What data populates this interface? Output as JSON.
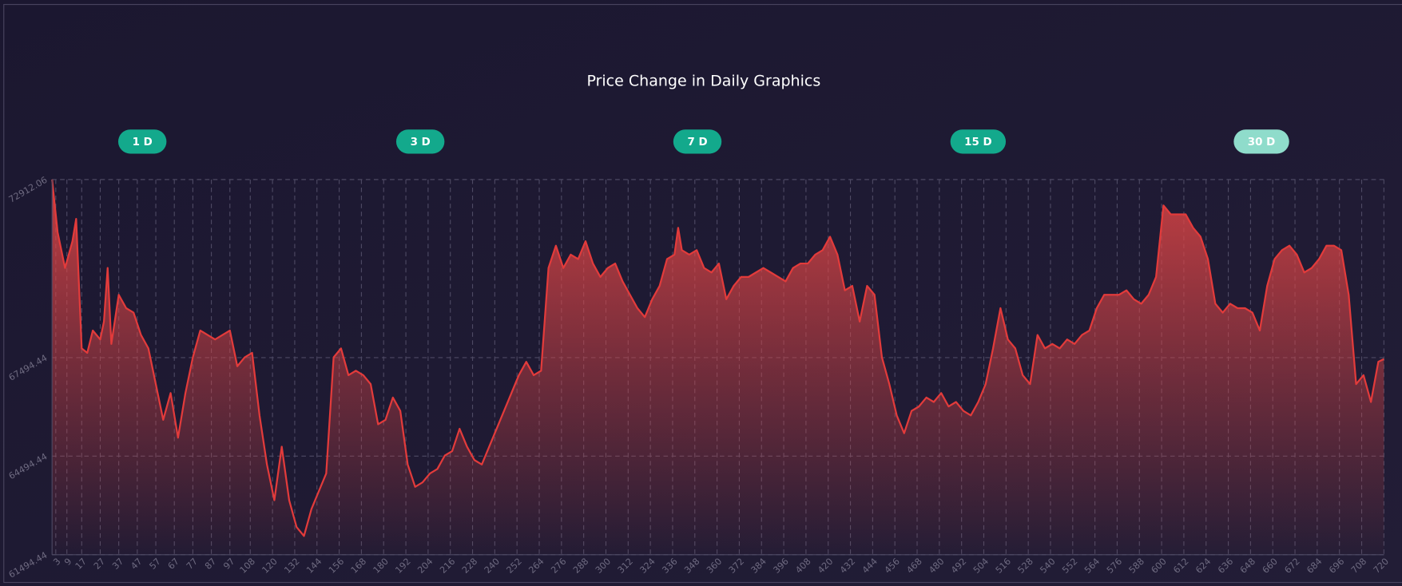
{
  "chart_data": {
    "type": "area",
    "title": "Price Change in Daily Graphics",
    "buttons": [
      {
        "label": "1 D",
        "active": false
      },
      {
        "label": "3 D",
        "active": false
      },
      {
        "label": "7 D",
        "active": false
      },
      {
        "label": "15 D",
        "active": false
      },
      {
        "label": "30 D",
        "active": true
      }
    ],
    "color": "#e23b3b",
    "grid": true,
    "xlim": [
      1,
      720
    ],
    "ylim": [
      61494.44,
      72912.06
    ],
    "yticks": [
      61494.44,
      64494.44,
      67494.44,
      72912.06
    ],
    "xticks": [
      3,
      9,
      17,
      27,
      37,
      47,
      57,
      67,
      77,
      87,
      97,
      108,
      120,
      132,
      144,
      156,
      168,
      180,
      192,
      204,
      216,
      228,
      240,
      252,
      264,
      276,
      288,
      300,
      312,
      324,
      336,
      348,
      360,
      372,
      384,
      396,
      408,
      420,
      432,
      444,
      456,
      468,
      480,
      492,
      504,
      516,
      528,
      540,
      552,
      564,
      576,
      588,
      600,
      612,
      624,
      636,
      648,
      660,
      672,
      684,
      696,
      708,
      720
    ],
    "x": [
      1,
      4,
      8,
      12,
      14,
      17,
      20,
      23,
      27,
      29,
      31,
      33,
      37,
      41,
      45,
      49,
      53,
      57,
      61,
      65,
      69,
      73,
      77,
      81,
      85,
      89,
      93,
      97,
      101,
      105,
      109,
      113,
      117,
      121,
      125,
      129,
      133,
      137,
      141,
      145,
      149,
      153,
      157,
      161,
      165,
      169,
      173,
      177,
      181,
      185,
      189,
      193,
      197,
      201,
      205,
      209,
      213,
      217,
      221,
      225,
      229,
      233,
      237,
      241,
      245,
      249,
      253,
      257,
      261,
      265,
      269,
      273,
      277,
      281,
      285,
      289,
      293,
      297,
      301,
      305,
      309,
      313,
      317,
      321,
      325,
      329,
      333,
      337,
      339,
      341,
      345,
      349,
      353,
      357,
      361,
      365,
      369,
      373,
      377,
      381,
      385,
      389,
      393,
      397,
      401,
      405,
      409,
      413,
      417,
      421,
      425,
      429,
      433,
      437,
      441,
      445,
      449,
      453,
      457,
      461,
      465,
      469,
      473,
      477,
      481,
      485,
      489,
      493,
      497,
      501,
      505,
      509,
      513,
      517,
      521,
      525,
      529,
      533,
      537,
      541,
      545,
      549,
      553,
      557,
      561,
      565,
      569,
      573,
      577,
      581,
      585,
      589,
      593,
      597,
      601,
      605,
      609,
      613,
      617,
      621,
      625,
      629,
      633,
      637,
      641,
      645,
      649,
      653,
      657,
      661,
      665,
      669,
      673,
      677,
      681,
      685,
      689,
      693,
      697,
      701,
      705,
      709,
      713,
      717,
      720
    ],
    "values": [
      72912,
      71308,
      70221,
      71036,
      71716,
      67774,
      67638,
      68318,
      68046,
      68590,
      70221,
      67910,
      69405,
      68998,
      68862,
      68182,
      67774,
      66687,
      65600,
      66415,
      65056,
      66415,
      67502,
      68318,
      68182,
      68046,
      68182,
      68318,
      67231,
      67502,
      67638,
      65735,
      64240,
      63153,
      64784,
      63153,
      62337,
      62065,
      62881,
      63425,
      63968,
      67502,
      67774,
      66958,
      67094,
      66958,
      66687,
      65464,
      65600,
      66279,
      65871,
      64240,
      63561,
      63697,
      63968,
      64104,
      64512,
      64648,
      65328,
      64784,
      64376,
      64240,
      64784,
      65328,
      65871,
      66415,
      66958,
      67366,
      66958,
      67094,
      70221,
      70900,
      70221,
      70628,
      70492,
      71036,
      70357,
      69949,
      70221,
      70357,
      69813,
      69405,
      68998,
      68726,
      69270,
      69677,
      70492,
      70628,
      71444,
      70764,
      70628,
      70764,
      70221,
      70085,
      70357,
      69270,
      69677,
      69949,
      69949,
      70085,
      70221,
      70085,
      69949,
      69813,
      70221,
      70357,
      70357,
      70628,
      70764,
      71172,
      70628,
      69541,
      69677,
      68590,
      69677,
      69405,
      67502,
      66687,
      65735,
      65192,
      65871,
      66007,
      66279,
      66143,
      66415,
      66007,
      66143,
      65871,
      65735,
      66143,
      66687,
      67774,
      68998,
      68046,
      67774,
      66958,
      66687,
      68182,
      67774,
      67910,
      67774,
      68046,
      67910,
      68182,
      68318,
      68998,
      69405,
      69405,
      69405,
      69541,
      69270,
      69134,
      69405,
      69949,
      72124,
      71852,
      71852,
      71852,
      71444,
      71172,
      70492,
      69134,
      68862,
      69134,
      68998,
      68998,
      68862,
      68318,
      69677,
      70492,
      70764,
      70900,
      70628,
      70085,
      70221,
      70492,
      70900,
      70900,
      70764,
      69405,
      66687,
      66958,
      66143,
      67366,
      67448
    ]
  }
}
